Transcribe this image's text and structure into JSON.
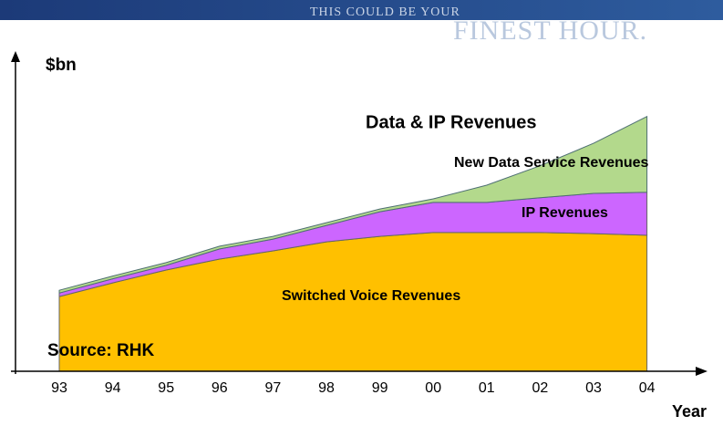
{
  "banner": {
    "line1": "THIS COULD BE YOUR",
    "line2": "FINEST HOUR."
  },
  "chart_data": {
    "type": "stacked_area",
    "y_label": "$bn",
    "x_label": "Year",
    "annotations": [
      "Data & IP Revenues",
      "Source: RHK"
    ],
    "categories": [
      "93",
      "94",
      "95",
      "96",
      "97",
      "98",
      "99",
      "00",
      "01",
      "02",
      "03",
      "04"
    ],
    "ylim": [
      0,
      100
    ],
    "series": [
      {
        "name": "Switched Voice Revenues",
        "color": "#ffc000",
        "values": [
          27.3,
          32.3,
          37,
          41,
          44,
          47.3,
          49.3,
          50.7,
          50.7,
          50.7,
          50.3,
          49.7
        ]
      },
      {
        "name": "IP Revenues",
        "color": "#cc66ff",
        "values": [
          1.3,
          1.5,
          1.7,
          3.7,
          4.3,
          6,
          9,
          11,
          11,
          12.7,
          14.7,
          15.7
        ]
      },
      {
        "name": "New Data Service Revenues",
        "color": "#b3d98c",
        "values": [
          1,
          1,
          1,
          1,
          1,
          1,
          1,
          1.3,
          6.3,
          11.7,
          18.3,
          27.7
        ]
      }
    ]
  }
}
